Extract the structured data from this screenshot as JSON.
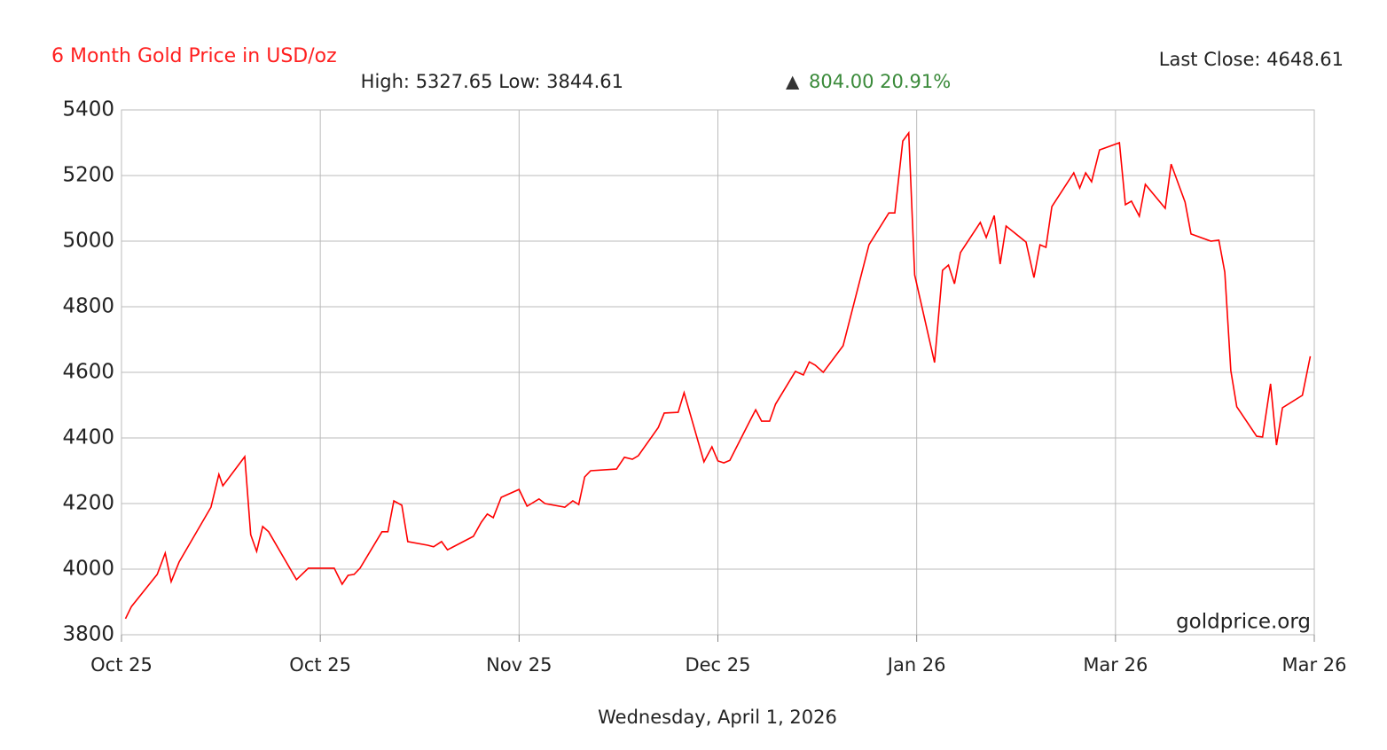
{
  "chart_data": {
    "type": "line",
    "title": "6 Month Gold Price in USD/oz",
    "summary": "High: 5327.65 Low: 3844.61",
    "change_symbol": "▲",
    "change": "804.00 20.91%",
    "last_close": "Last Close: 4648.61",
    "watermark": "goldprice.org",
    "date": "Wednesday, April 1, 2026",
    "grid": true,
    "xlim": [
      0,
      6
    ],
    "xticks": [
      {
        "value": 0,
        "label": "Oct 25"
      },
      {
        "value": 1,
        "label": "Oct 25"
      },
      {
        "value": 2,
        "label": "Nov 25"
      },
      {
        "value": 3,
        "label": "Dec 25"
      },
      {
        "value": 4,
        "label": "Jan 26"
      },
      {
        "value": 5,
        "label": "Mar 26"
      },
      {
        "value": 6,
        "label": "Mar 26"
      }
    ],
    "ylim": [
      3800,
      5400
    ],
    "yticks": [
      3800,
      4000,
      4200,
      4400,
      4600,
      4800,
      5000,
      5200,
      5400
    ],
    "series": [
      {
        "name": "Gold",
        "color": "#ff0000",
        "x": [
          0.02,
          0.05,
          0.18,
          0.22,
          0.25,
          0.29,
          0.45,
          0.49,
          0.51,
          0.62,
          0.65,
          0.68,
          0.71,
          0.74,
          0.88,
          0.94,
          1.07,
          1.11,
          1.14,
          1.17,
          1.2,
          1.31,
          1.34,
          1.37,
          1.41,
          1.44,
          1.54,
          1.57,
          1.61,
          1.64,
          1.77,
          1.81,
          1.84,
          1.87,
          1.91,
          2.0,
          2.04,
          2.1,
          2.13,
          2.23,
          2.27,
          2.3,
          2.33,
          2.36,
          2.49,
          2.53,
          2.57,
          2.6,
          2.7,
          2.73,
          2.8,
          2.83,
          2.93,
          2.97,
          3.0,
          3.03,
          3.06,
          3.16,
          3.19,
          3.22,
          3.26,
          3.29,
          3.39,
          3.43,
          3.46,
          3.49,
          3.53,
          3.63,
          3.76,
          3.86,
          3.89,
          3.93,
          3.96,
          3.99,
          4.09,
          4.13,
          4.16,
          4.19,
          4.22,
          4.32,
          4.35,
          4.39,
          4.42,
          4.45,
          4.55,
          4.59,
          4.62,
          4.65,
          4.68,
          4.79,
          4.82,
          4.85,
          4.88,
          4.92,
          5.02,
          5.05,
          5.08,
          5.12,
          5.15,
          5.25,
          5.28,
          5.35,
          5.38,
          5.48,
          5.52,
          5.55,
          5.58,
          5.61,
          5.71,
          5.74,
          5.78,
          5.81,
          5.84,
          5.94,
          5.98
        ],
        "values": [
          3849,
          3886,
          3984,
          4049,
          3962,
          4022,
          4189,
          4289,
          4254,
          4343,
          4105,
          4054,
          4130,
          4114,
          3968,
          4003,
          4003,
          3954,
          3981,
          3984,
          4003,
          4114,
          4114,
          4208,
          4195,
          4084,
          4073,
          4068,
          4084,
          4059,
          4100,
          4143,
          4168,
          4157,
          4219,
          4243,
          4192,
          4214,
          4200,
          4189,
          4208,
          4197,
          4281,
          4300,
          4305,
          4341,
          4335,
          4346,
          4432,
          4476,
          4478,
          4538,
          4327,
          4373,
          4330,
          4324,
          4332,
          4451,
          4486,
          4451,
          4451,
          4503,
          4603,
          4592,
          4632,
          4622,
          4600,
          4681,
          4989,
          5086,
          5086,
          5305,
          5330,
          4897,
          4630,
          4911,
          4927,
          4870,
          4965,
          5057,
          5011,
          5078,
          4930,
          5046,
          4997,
          4889,
          4989,
          4981,
          5105,
          5208,
          5162,
          5208,
          5181,
          5278,
          5300,
          5111,
          5122,
          5076,
          5173,
          5100,
          5235,
          5119,
          5022,
          5000,
          5003,
          4905,
          4605,
          4495,
          4405,
          4403,
          4565,
          4378,
          4492,
          4530,
          4649
        ]
      }
    ]
  }
}
